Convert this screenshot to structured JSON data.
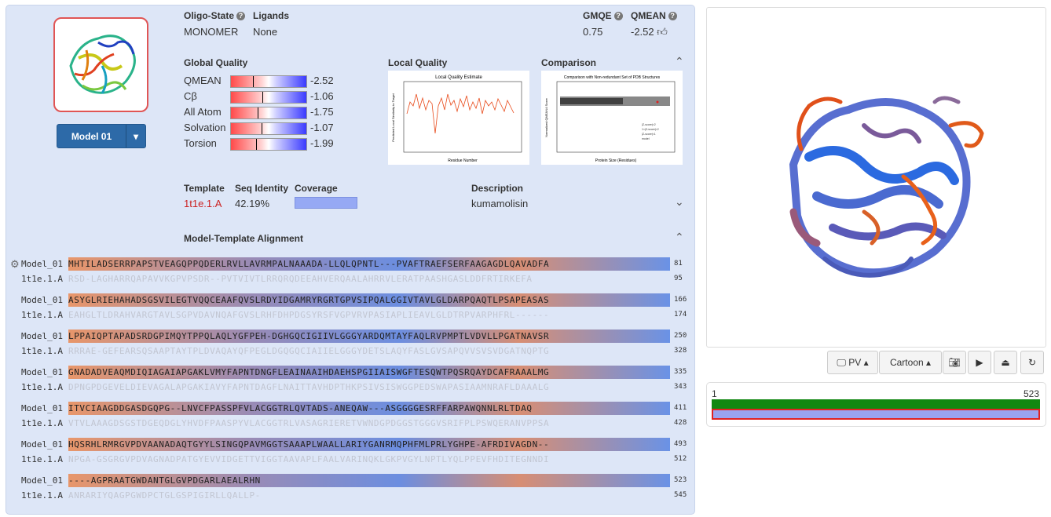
{
  "model": {
    "button_label": "Model 01",
    "oligo_state_label": "Oligo-State",
    "oligo_state": "MONOMER",
    "ligands_label": "Ligands",
    "ligands": "None",
    "gmqe_label": "GMQE",
    "gmqe": "0.75",
    "qmean_label": "QMEAN",
    "qmean": "-2.52"
  },
  "global_quality": {
    "title": "Global Quality",
    "rows": [
      {
        "name": "QMEAN",
        "value": "-2.52",
        "mark": -2.52
      },
      {
        "name": "Cβ",
        "value": "-1.06",
        "mark": -1.06
      },
      {
        "name": "All Atom",
        "value": "-1.75",
        "mark": -1.75
      },
      {
        "name": "Solvation",
        "value": "-1.07",
        "mark": -1.07
      },
      {
        "name": "Torsion",
        "value": "-1.99",
        "mark": -1.99
      }
    ]
  },
  "local_quality": {
    "title": "Local Quality",
    "plot_title": "Local Quality Estimate",
    "xlabel": "Residue Number",
    "ylabel": "Predicted Local Similarity to Target"
  },
  "comparison": {
    "title": "Comparison",
    "plot_title": "Comparison with Non-redundant Set of PDB Structures",
    "xlabel": "Protein Size (Residues)",
    "ylabel": "Normalized QMEAN4 Score",
    "legend": [
      "|Z-score|<2",
      "1<|Z-score|<2",
      "|Z-score|<1",
      "model"
    ]
  },
  "template": {
    "template_label": "Template",
    "template_id": "1t1e.1.A",
    "seq_identity_label": "Seq Identity",
    "seq_identity": "42.19%",
    "coverage_label": "Coverage",
    "description_label": "Description",
    "description": "kumamolisin"
  },
  "alignment": {
    "title": "Model-Template Alignment",
    "blocks": [
      {
        "model": "MHTILADSERRPAPSTVEAGQPPQDERLRVLLAVRMPALNAAADA-LLQLQPNTL---PVAFTRAEFSERFAAGAGDLQAVADFA",
        "model_end": "81",
        "template": "RSD-LAGHARRQAPAVVKGPVPSDR--PVTVIVTLRRQRQDEEAHVERQAALAHRRVLERATPAASHGASLDDFRTIRKEFA",
        "template_end": "95"
      },
      {
        "model": "ASYGLRIEHAHADSGSVILEGTVQQCEAAFQVSLRDYIDGAMRYRGRTGPVSIPQALGGIVTAVLGLDARPQAQTLPSAPEASAS",
        "model_end": "166",
        "template": "EAHGLTLDRAHVARGTAVLSGPVDAVNQAFGVSLRHFDHPDGSYRSFVGPVRVPASIAPLIEAVLGLDTRPVARPHFRL------",
        "template_end": "174"
      },
      {
        "model": "LPPAIQPTAPADSRDGPIMQYTPPQLAQLYGFPEH-DGHGQCIGIIVLGGGYARDQMTAYFAQLRVPMPTLVDVLLPGATNAVSR",
        "model_end": "250",
        "template": "RRRAE-GEFEARSQSAAPTAYTPLDVAQAYQFPEGLDGQGQCIAIIELGGGYDETSLAQYFASLGVSAPQVVSVSVDGATNQPTG",
        "template_end": "328"
      },
      {
        "model": "GNADADVEAQMDIQIAGAIAPGAKLVMYFAPNTDNGFLEAINAAIHDAEHSPGIIAISWGFTESQWTPQSRQAYDCAFRAAALMG",
        "model_end": "335",
        "template": "DPNGPDGEVELDIEVAGALAPGAKIAVYFAPNTDAGFLNAITTAVHDPTHKPSIVSISWGGPEDSWAPASIAAMNRAFLDAAALG",
        "template_end": "343"
      },
      {
        "model": "ITVCIAAGDDGASDGQPG--LNVCFPASSPFVLACGGTRLQVTADS-ANEQAW---ASGGGGESRFFARPAWQNNLRLTDAQ",
        "model_end": "411",
        "template": "VTVLAAAGDSGSTDGEQDGLYHVDFPAASPYVLACGGTRLVASAGRIERETVWNDGPDGGSTGGGVSRIFPLPSWQERANVPPSA",
        "template_end": "428"
      },
      {
        "model": "HQSRHLRMRGVPDVAANADAQTGYYLSINGQPAVMGGTSAAAPLWAALLARIYGANRMQPHFMLPRLYGHPE-AFRDIVAGDN--",
        "model_end": "493",
        "template": "NPGA-GSGRGVPDVAGNADPATGYEVVIDGETTVIGGTAAVAPLFAALVARINQKLGKPVGYLNPTLYQLPPEVFHDITEGNNDI",
        "template_end": "512"
      },
      {
        "model": "----AGPRAATGWDANTGLGVPDGARLAEALRHN",
        "model_end": "523",
        "template": "ANRARIYQAGPGWDPCTGLGSPIGIRLLQALLP-",
        "template_end": "545"
      }
    ],
    "model_row_label": "Model_01",
    "template_row_label": "1t1e.1.A"
  },
  "viewer": {
    "pv_label": "PV",
    "cartoon_label": "Cartoon"
  },
  "seq_overview": {
    "start": "1",
    "end": "523"
  }
}
